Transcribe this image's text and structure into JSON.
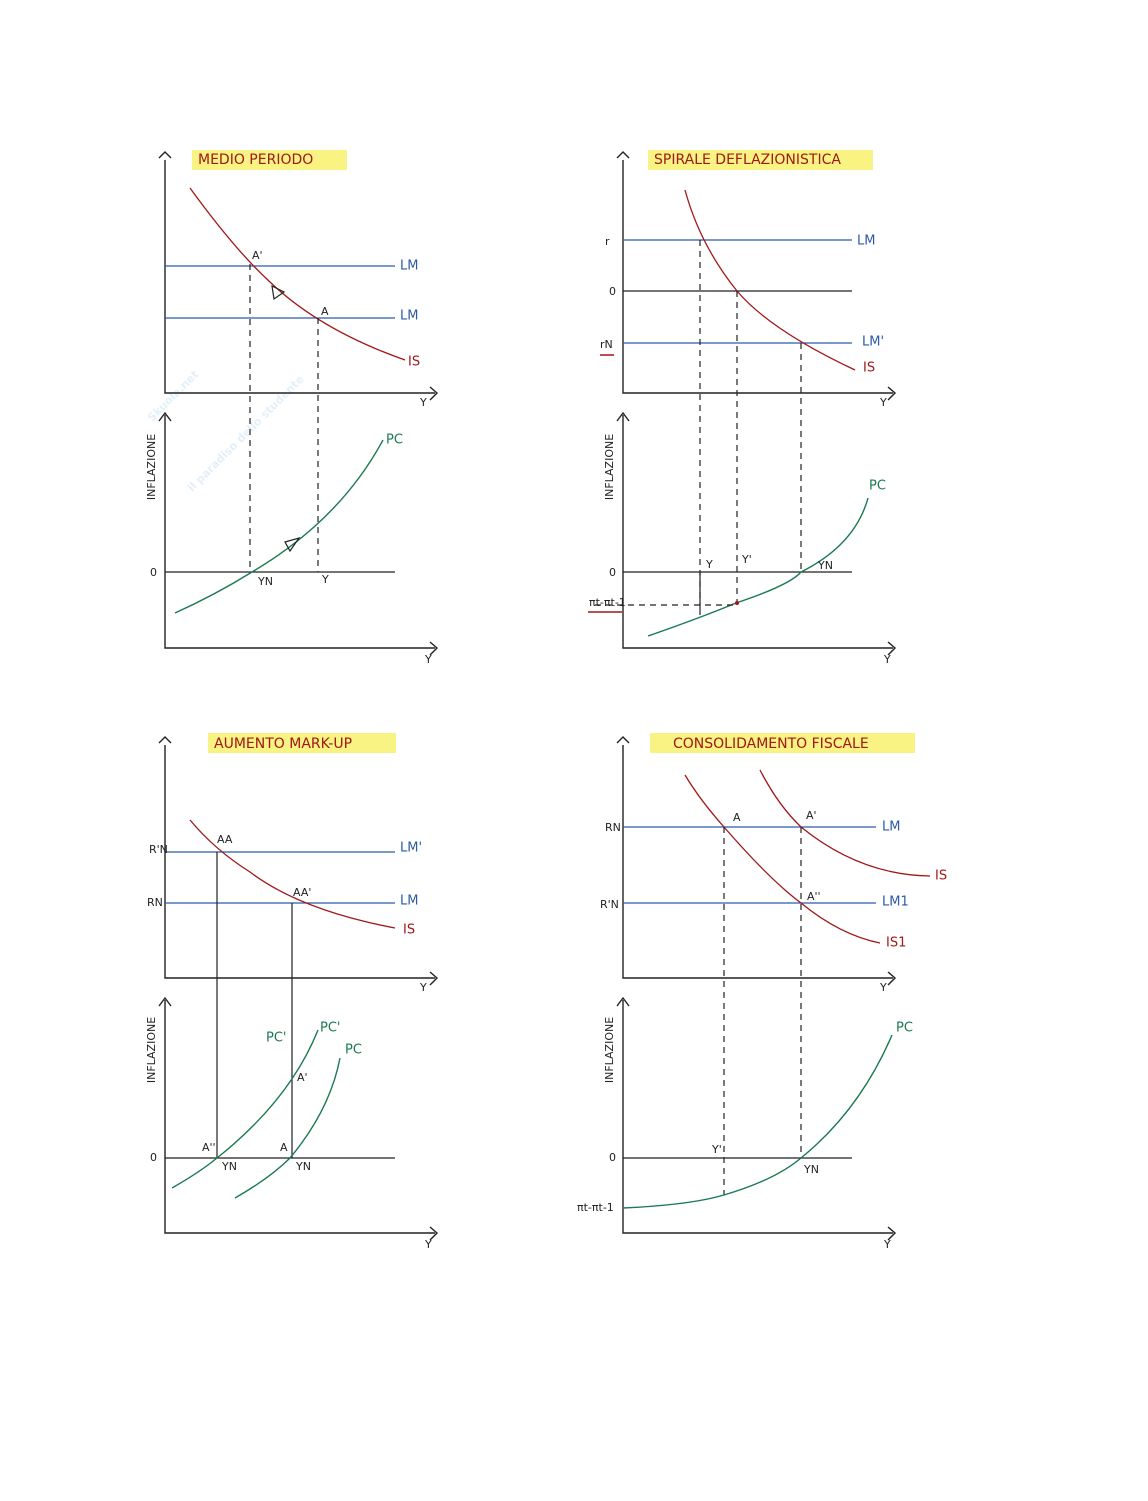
{
  "watermark": {
    "brand": "Skuola.net",
    "tagline": "il paradiso dello studente"
  },
  "panels": [
    {
      "title": "MEDIO PERIODO",
      "labels": [
        "A'",
        "A",
        "LM",
        "LM",
        "IS",
        "Y",
        "INFLAZIONE",
        "PC",
        "0",
        "YN",
        "Y",
        "Y"
      ]
    },
    {
      "title": "SPIRALE DEFLAZIONISTICA",
      "labels": [
        "r",
        "0",
        "rN",
        "LM",
        "LM'",
        "IS",
        "Y",
        "INFLAZIONE",
        "PC",
        "0",
        "Y",
        "Y'",
        "YN",
        "πt-πt-1",
        "Y"
      ]
    },
    {
      "title": "AUMENTO MARK-UP",
      "labels": [
        "R'N",
        "RN",
        "AA",
        "AA'",
        "LM'",
        "LM",
        "IS",
        "Y",
        "INFLAZIONE",
        "PC'",
        "PC'",
        "PC",
        "A'",
        "A''",
        "A",
        "0",
        "YN",
        "YN",
        "Y"
      ]
    },
    {
      "title": "CONSOLIDAMENTO FISCALE",
      "labels": [
        "RN",
        "R'N",
        "A",
        "A'",
        "A''",
        "LM",
        "LM1",
        "IS",
        "IS1",
        "Y",
        "INFLAZIONE",
        "PC",
        "0",
        "Y'",
        "YN",
        "πt-πt-1",
        "Y"
      ]
    }
  ]
}
